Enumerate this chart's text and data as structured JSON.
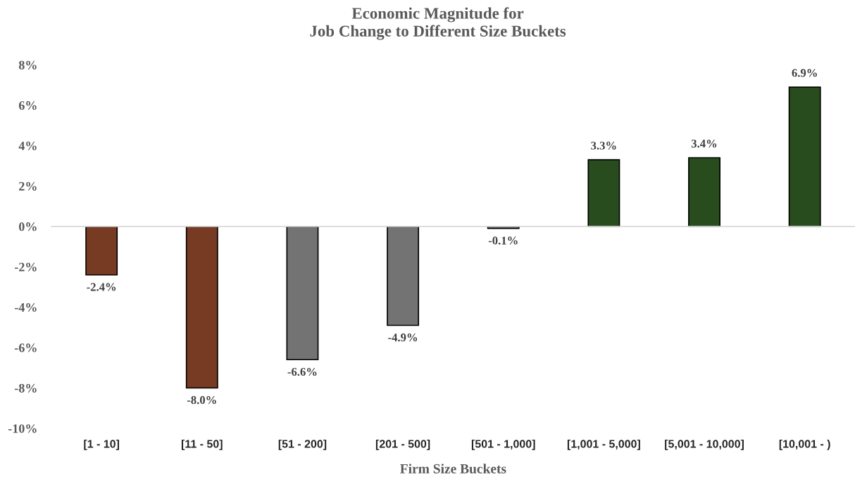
{
  "chart_data": {
    "type": "bar",
    "title": "Economic Magnitude for\nJob Change to Different Size Buckets",
    "xlabel": "Firm Size Buckets",
    "categories": [
      "[1 - 10]",
      "[11 - 50]",
      "[51 - 200]",
      "[201 - 500]",
      "[501 - 1,000]",
      "[1,001 - 5,000]",
      "[5,001 - 10,000]",
      "[10,001 - )"
    ],
    "values": [
      -2.4,
      -8.0,
      -6.6,
      -4.9,
      -0.1,
      3.3,
      3.4,
      6.9
    ],
    "colors": [
      "#843514",
      "#843514",
      "#737373",
      "#737373",
      "#737373",
      "#255317",
      "#255317",
      "#255317"
    ],
    "value_labels": [
      "-2.4%",
      "-8.0%",
      "-6.6%",
      "-4.9%",
      "-0.1%",
      "3.3%",
      "3.4%",
      "6.9%"
    ],
    "ylim": [
      -10,
      8
    ],
    "yticks": [
      {
        "value": -10,
        "label": "-10%"
      },
      {
        "value": -8,
        "label": "-8%"
      },
      {
        "value": -6,
        "label": "-6%"
      },
      {
        "value": -4,
        "label": "-4%"
      },
      {
        "value": -2,
        "label": "-2%"
      },
      {
        "value": 0,
        "label": "0%"
      },
      {
        "value": 2,
        "label": "2%"
      },
      {
        "value": 4,
        "label": "4%"
      },
      {
        "value": 6,
        "label": "6%"
      },
      {
        "value": 8,
        "label": "8%"
      }
    ]
  }
}
